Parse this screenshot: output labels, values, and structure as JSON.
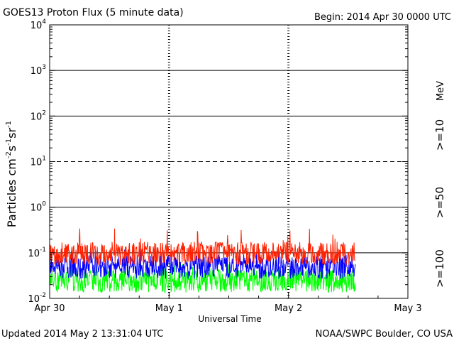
{
  "chart_data": {
    "type": "line",
    "title": "GOES13 Proton Flux (5 minute data)",
    "begin_label": "Begin: 2014 Apr 30 0000 UTC",
    "xlabel": "Universal Time",
    "ylabel": "Particles cm",
    "ylabel_sup1": "-2",
    "ylabel_mid1": "s",
    "ylabel_sup2": "-1",
    "ylabel_mid2": "sr",
    "ylabel_sup3": "-1",
    "y_scale": "log",
    "ylim_exp": [
      -2,
      4
    ],
    "y_ticks": [
      {
        "base": "10",
        "exp": "4",
        "value_exp": 4
      },
      {
        "base": "10",
        "exp": "3",
        "value_exp": 3
      },
      {
        "base": "10",
        "exp": "2",
        "value_exp": 2
      },
      {
        "base": "10",
        "exp": "1",
        "value_exp": 1
      },
      {
        "base": "10",
        "exp": "0",
        "value_exp": 0
      },
      {
        "base": "10",
        "exp": "-1",
        "value_exp": -1
      },
      {
        "base": "10",
        "exp": "-2",
        "value_exp": -2
      }
    ],
    "x_ticks": [
      {
        "label": "Apr 30",
        "day": 0
      },
      {
        "label": "May 1",
        "day": 1
      },
      {
        "label": "May 2",
        "day": 2
      },
      {
        "label": "May 3",
        "day": 3
      }
    ],
    "xlim_days": [
      0,
      3
    ],
    "data_end_day": 2.56,
    "series": [
      {
        "name": ">=10",
        "color": "#ff2000",
        "typical": 0.12,
        "max": 0.35
      },
      {
        "name": ">=50",
        "color": "#0000ff",
        "typical": 0.06,
        "max": 0.12
      },
      {
        "name": ">=100",
        "color": "#00ff00",
        "typical": 0.03,
        "max": 0.06
      }
    ],
    "legend_unit": "MeV",
    "grid": true,
    "legend_placement": "right"
  },
  "footer": {
    "updated": "Updated 2014 May  2 13:31:04 UTC",
    "source": "NOAA/SWPC Boulder, CO USA"
  }
}
